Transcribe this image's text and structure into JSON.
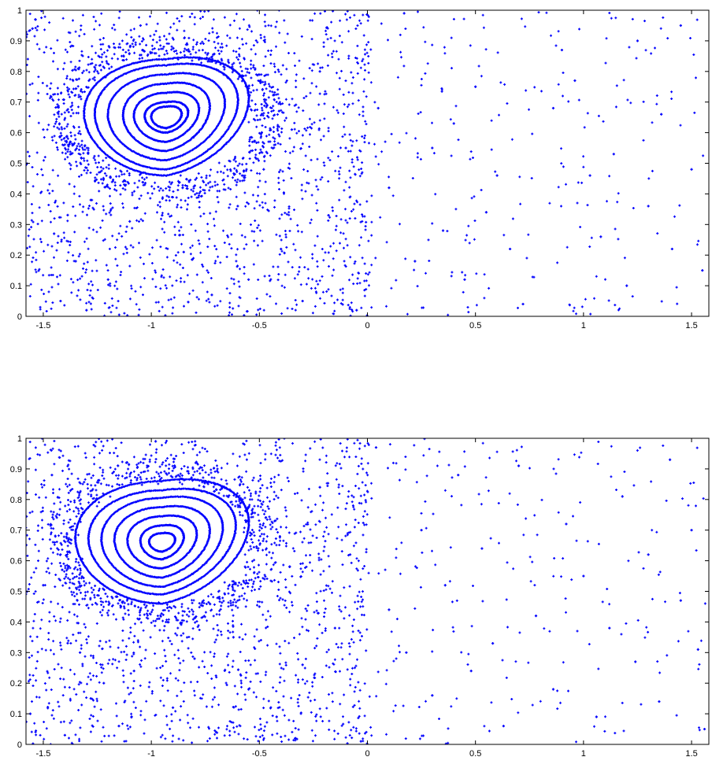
{
  "chart_data": [
    {
      "type": "scatter",
      "title": "",
      "xlabel": "",
      "ylabel": "",
      "xlim": [
        -1.58,
        1.58
      ],
      "ylim": [
        0,
        1
      ],
      "x_ticks": [
        "-1.5",
        "-1",
        "-0.5",
        "0",
        "0.5",
        "1",
        "1.5"
      ],
      "y_ticks": [
        "0",
        "0.1",
        "0.2",
        "0.3",
        "0.4",
        "0.5",
        "0.6",
        "0.7",
        "0.8",
        "0.9",
        "1"
      ],
      "grid": false,
      "legend": "none",
      "marker_color": "#0000ff",
      "island": {
        "center": [
          -0.93,
          0.65
        ],
        "orbits": [
          [
            0.07,
            0.035
          ],
          [
            0.1,
            0.05
          ],
          [
            0.15,
            0.08
          ],
          [
            0.2,
            0.11
          ],
          [
            0.27,
            0.14
          ],
          [
            0.33,
            0.17
          ],
          [
            0.38,
            0.19
          ]
        ]
      },
      "points": [
        [
          -1.55,
          0.94
        ],
        [
          -1.5,
          0.61
        ],
        [
          -1.45,
          0.27
        ],
        [
          -1.42,
          0.05
        ],
        [
          -1.35,
          0.18
        ],
        [
          -1.3,
          0.02
        ],
        [
          -1.28,
          0.38
        ],
        [
          -1.2,
          0.12
        ],
        [
          -1.1,
          0.31
        ],
        [
          -1.05,
          0.95
        ],
        [
          -0.95,
          0.33
        ],
        [
          -0.85,
          0.21
        ],
        [
          -0.72,
          0.07
        ],
        [
          -0.6,
          0.36
        ],
        [
          -0.55,
          0.12
        ],
        [
          -0.48,
          0.48
        ],
        [
          -0.4,
          0.22
        ],
        [
          -0.35,
          0.61
        ],
        [
          -0.3,
          0.05
        ],
        [
          -0.22,
          0.8
        ],
        [
          -0.18,
          0.33
        ],
        [
          -0.1,
          0.55
        ],
        [
          -0.05,
          0.02
        ],
        [
          0.05,
          0.68
        ],
        [
          0.1,
          0.42
        ],
        [
          0.17,
          0.99
        ],
        [
          0.22,
          0.18
        ],
        [
          0.3,
          0.55
        ],
        [
          0.35,
          0.28
        ],
        [
          0.4,
          0.63
        ],
        [
          0.45,
          0.12
        ],
        [
          0.5,
          0.75
        ],
        [
          0.55,
          0.34
        ],
        [
          0.6,
          0.46
        ],
        [
          0.66,
          0.22
        ],
        [
          0.72,
          0.04
        ],
        [
          0.86,
          0.68
        ],
        [
          0.9,
          0.87
        ],
        [
          0.96,
          0.77
        ],
        [
          1.03,
          0.46
        ],
        [
          1.08,
          0.26
        ],
        [
          1.14,
          0.53
        ],
        [
          1.2,
          0.1
        ],
        [
          1.25,
          0.9
        ],
        [
          1.3,
          0.36
        ],
        [
          1.36,
          0.66
        ],
        [
          1.41,
          0.22
        ],
        [
          1.45,
          0.95
        ],
        [
          1.5,
          0.48
        ],
        [
          1.55,
          0.15
        ]
      ]
    },
    {
      "type": "scatter",
      "title": "",
      "xlabel": "",
      "ylabel": "",
      "xlim": [
        -1.58,
        1.58
      ],
      "ylim": [
        0,
        1
      ],
      "x_ticks": [
        "-1.5",
        "-1",
        "-0.5",
        "0",
        "0.5",
        "1",
        "1.5"
      ],
      "y_ticks": [
        "0",
        "0.1",
        "0.2",
        "0.3",
        "0.4",
        "0.5",
        "0.6",
        "0.7",
        "0.8",
        "0.9",
        "1"
      ],
      "grid": false,
      "legend": "none",
      "marker_color": "#0000ff",
      "island": {
        "center": [
          -0.95,
          0.66
        ],
        "orbits": [
          [
            0.06,
            0.03
          ],
          [
            0.1,
            0.055
          ],
          [
            0.16,
            0.085
          ],
          [
            0.22,
            0.115
          ],
          [
            0.28,
            0.145
          ],
          [
            0.34,
            0.17
          ],
          [
            0.4,
            0.2
          ]
        ]
      },
      "points": [
        [
          -1.56,
          0.1
        ],
        [
          -1.5,
          0.52
        ],
        [
          -1.46,
          0.88
        ],
        [
          -1.4,
          0.03
        ],
        [
          -1.33,
          0.3
        ],
        [
          -1.28,
          0.15
        ],
        [
          -1.22,
          0.2
        ],
        [
          -1.15,
          0.06
        ],
        [
          -1.08,
          0.24
        ],
        [
          -0.98,
          0.99
        ],
        [
          -0.9,
          0.12
        ],
        [
          -0.8,
          0.28
        ],
        [
          -0.7,
          0.04
        ],
        [
          -0.62,
          0.35
        ],
        [
          -0.55,
          0.18
        ],
        [
          -0.5,
          0.45
        ],
        [
          -0.42,
          0.09
        ],
        [
          -0.36,
          0.58
        ],
        [
          -0.3,
          0.26
        ],
        [
          -0.22,
          0.84
        ],
        [
          -0.15,
          0.38
        ],
        [
          -0.08,
          0.62
        ],
        [
          -0.03,
          0.01
        ],
        [
          0.04,
          0.97
        ],
        [
          0.1,
          0.44
        ],
        [
          0.18,
          0.3
        ],
        [
          0.25,
          0.7
        ],
        [
          0.3,
          0.16
        ],
        [
          0.36,
          0.52
        ],
        [
          0.42,
          0.88
        ],
        [
          0.48,
          0.24
        ],
        [
          0.53,
          0.64
        ],
        [
          0.58,
          0.33
        ],
        [
          0.63,
          0.06
        ],
        [
          0.7,
          0.91
        ],
        [
          0.78,
          0.42
        ],
        [
          0.86,
          0.18
        ],
        [
          0.92,
          0.72
        ],
        [
          1.0,
          0.55
        ],
        [
          1.06,
          0.09
        ],
        [
          1.12,
          0.38
        ],
        [
          1.18,
          0.81
        ],
        [
          1.24,
          0.27
        ],
        [
          1.3,
          0.62
        ],
        [
          1.35,
          0.14
        ],
        [
          1.4,
          0.93
        ],
        [
          1.45,
          0.47
        ],
        [
          1.5,
          0.7
        ],
        [
          1.53,
          0.31
        ],
        [
          1.56,
          0.05
        ]
      ]
    }
  ]
}
